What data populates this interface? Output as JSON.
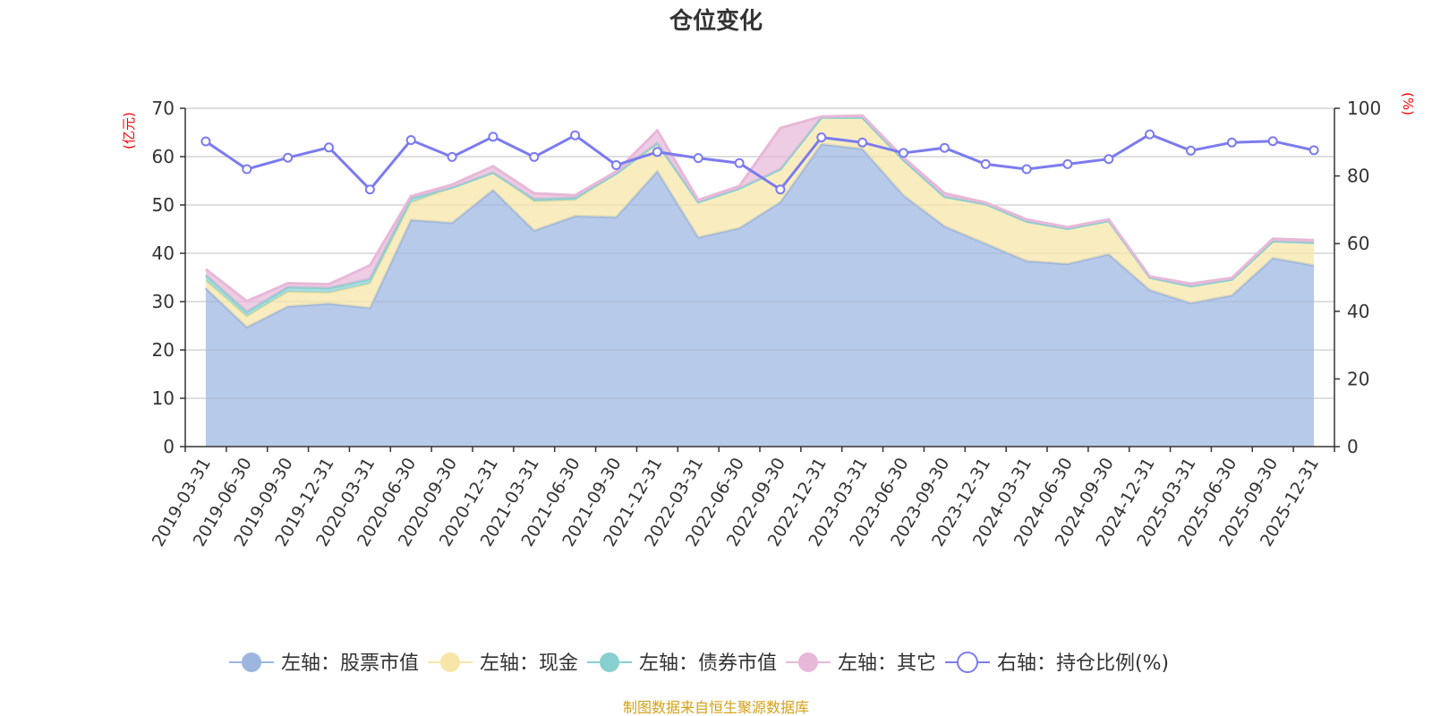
{
  "chart_data": {
    "type": "area",
    "title": "仓位变化",
    "footer": "制图数据来自恒生聚源数据库",
    "categories": [
      "2019-03-31",
      "2019-06-30",
      "2019-09-30",
      "2019-12-31",
      "2020-03-31",
      "2020-06-30",
      "2020-09-30",
      "2020-12-31",
      "2021-03-31",
      "2021-06-30",
      "2021-09-30",
      "2021-12-31",
      "2022-03-31",
      "2022-06-30",
      "2022-09-30",
      "2022-12-31",
      "2023-03-31",
      "2023-06-30",
      "2023-09-30",
      "2023-12-31",
      "2024-03-31",
      "2024-06-30",
      "2024-09-30",
      "2024-12-31",
      "2025-03-31",
      "2025-06-30",
      "2025-09-30",
      "2025-12-31"
    ],
    "left_axis": {
      "unit": "(亿元)",
      "ylim": [
        0,
        70
      ],
      "ticks": [
        0,
        10,
        20,
        30,
        40,
        50,
        60,
        70
      ]
    },
    "right_axis": {
      "unit": "(%)",
      "ylim": [
        0,
        100
      ],
      "ticks": [
        0,
        20,
        40,
        60,
        80,
        100
      ]
    },
    "grid": true,
    "legend_position": "bottom",
    "series": [
      {
        "name": "左轴：股票市值",
        "axis": "left",
        "stack": "left",
        "color": "#9db6e0",
        "values": [
          32.8,
          24.7,
          29.0,
          29.6,
          28.7,
          46.9,
          46.3,
          53.1,
          44.7,
          47.7,
          47.5,
          57.0,
          43.3,
          45.2,
          50.6,
          62.6,
          61.6,
          52.0,
          45.6,
          42.0,
          38.4,
          37.8,
          39.8,
          32.4,
          29.7,
          31.3,
          39.0,
          37.5
        ]
      },
      {
        "name": "左轴：现金",
        "axis": "left",
        "stack": "left",
        "color": "#f7e6a8",
        "values": [
          1.5,
          2.2,
          3.0,
          2.2,
          5.0,
          3.5,
          7.3,
          3.6,
          6.0,
          3.3,
          9.0,
          5.8,
          7.3,
          8.2,
          6.8,
          5.5,
          6.5,
          7.3,
          6.1,
          8.2,
          8.2,
          7.3,
          6.9,
          2.6,
          3.5,
          3.3,
          3.5,
          4.7
        ]
      },
      {
        "name": "左轴：债券市值",
        "axis": "left",
        "stack": "left",
        "color": "#88cfd0",
        "values": [
          1.2,
          1.0,
          1.0,
          1.0,
          1.0,
          1.0,
          0,
          0,
          0.5,
          0.5,
          0,
          0,
          0,
          0,
          0,
          0,
          0,
          0,
          0,
          0,
          0,
          0,
          0,
          0,
          0,
          0,
          0,
          0
        ]
      },
      {
        "name": "左轴：其它",
        "axis": "left",
        "stack": "left",
        "color": "#e8b8d8",
        "values": [
          1.2,
          2.2,
          0.8,
          0.8,
          2.8,
          0.4,
          0.6,
          1.3,
          1.2,
          0.5,
          0.4,
          2.6,
          0.4,
          0.5,
          8.5,
          0.2,
          0.4,
          0.5,
          0.7,
          0.3,
          0.4,
          0.3,
          0.3,
          0.2,
          0.5,
          0.3,
          0.5,
          0.5
        ]
      },
      {
        "name": "右轴：持仓比例(%)",
        "axis": "right",
        "type": "line",
        "color": "#7b7bef",
        "values": [
          90.2,
          82.0,
          85.4,
          88.4,
          76.0,
          90.6,
          85.6,
          91.6,
          85.6,
          92.0,
          83.2,
          87.1,
          85.3,
          83.8,
          76.0,
          91.4,
          89.9,
          86.8,
          88.3,
          83.5,
          82.0,
          83.5,
          85.0,
          92.3,
          87.5,
          89.9,
          90.3,
          87.6
        ]
      }
    ]
  }
}
